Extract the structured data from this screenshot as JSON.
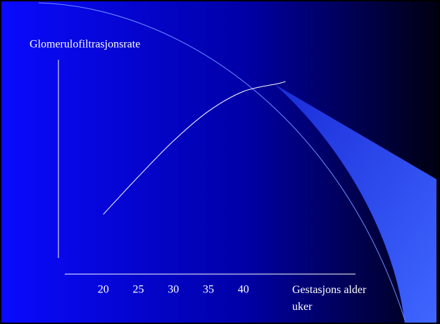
{
  "chart_data": {
    "type": "line",
    "title": "Glomerulofiltrasjonsrate",
    "x_label": "Gestasjons alder uker",
    "x": [
      20,
      25,
      30,
      35,
      40,
      45,
      46
    ],
    "values": [
      22,
      41,
      59,
      74,
      84,
      88,
      89
    ],
    "color": "#ffffff",
    "xlim": [
      14.5,
      56
    ],
    "xticks": [
      20,
      25,
      30,
      35,
      40
    ],
    "ylim": [
      0,
      100
    ]
  }
}
